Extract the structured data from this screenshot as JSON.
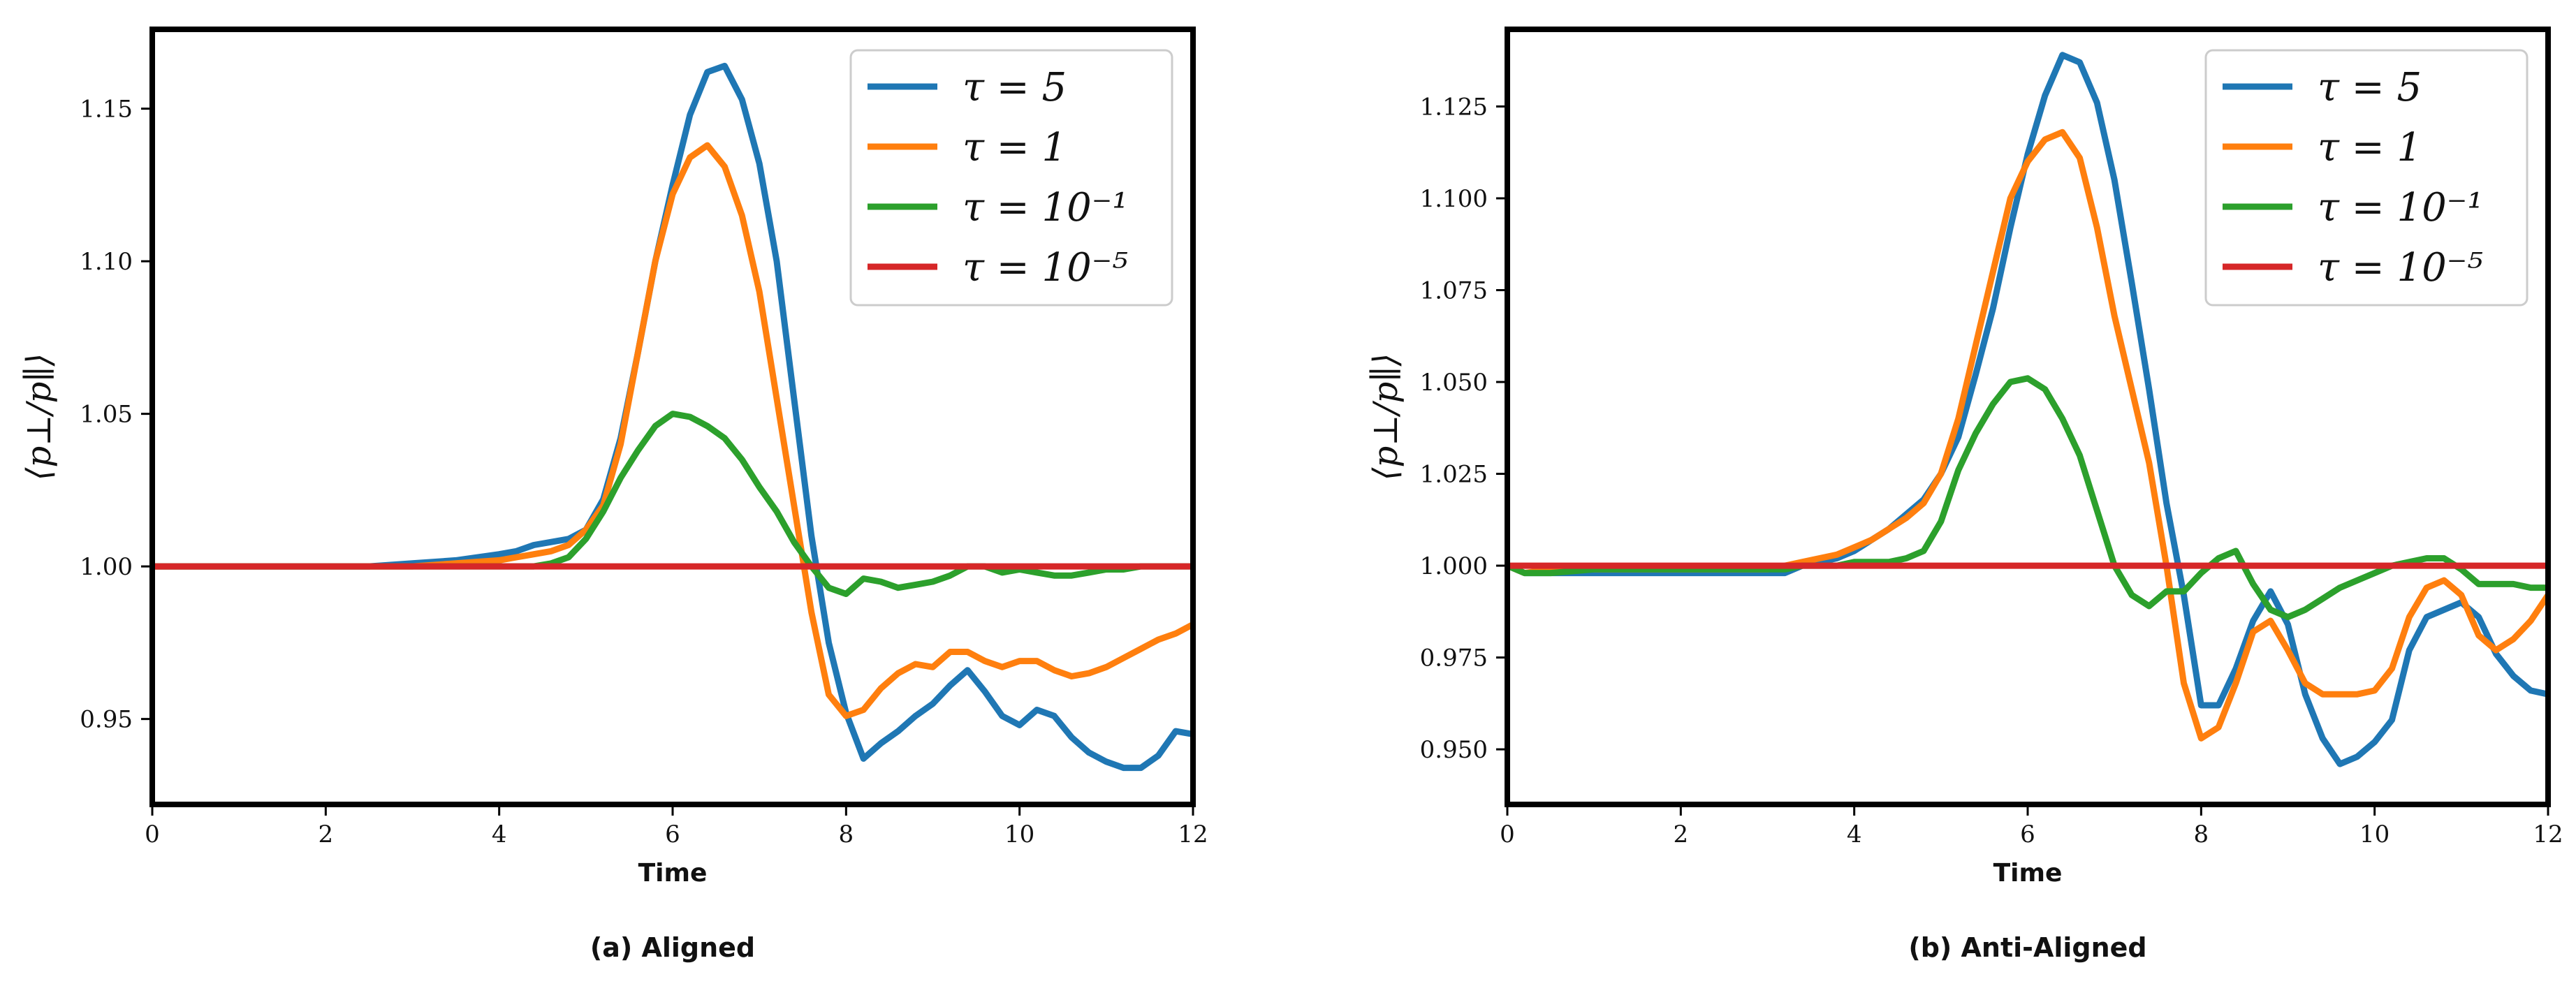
{
  "chart_data": [
    {
      "type": "line",
      "caption": "(a) Aligned",
      "xlabel": "Time",
      "ylabel": "⟨p⊥/p∥⟩",
      "xlim": [
        0,
        12
      ],
      "ylim": [
        0.922,
        1.176
      ],
      "xticks": [
        0,
        2,
        4,
        6,
        8,
        10,
        12
      ],
      "xtick_labels": [
        "0",
        "2",
        "4",
        "6",
        "8",
        "10",
        "12"
      ],
      "yticks": [
        0.95,
        1.0,
        1.05,
        1.1,
        1.15
      ],
      "ytick_labels": [
        "0.95",
        "1.00",
        "1.05",
        "1.10",
        "1.15"
      ],
      "legend_position": "top-right",
      "grid": false,
      "series": [
        {
          "name": "τ = 5",
          "color": "#1f77b4",
          "x": [
            0,
            0.5,
            1,
            1.5,
            2,
            2.5,
            3,
            3.5,
            4,
            4.2,
            4.4,
            4.6,
            4.8,
            5,
            5.2,
            5.4,
            5.6,
            5.8,
            6,
            6.2,
            6.4,
            6.6,
            6.8,
            7,
            7.2,
            7.4,
            7.6,
            7.8,
            8,
            8.2,
            8.4,
            8.6,
            8.8,
            9,
            9.2,
            9.4,
            9.6,
            9.8,
            10,
            10.2,
            10.4,
            10.6,
            10.8,
            11,
            11.2,
            11.4,
            11.6,
            11.8,
            12
          ],
          "y": [
            1.0,
            1.0,
            1.0,
            1.0,
            1.0,
            1.0,
            1.001,
            1.002,
            1.004,
            1.005,
            1.007,
            1.008,
            1.009,
            1.012,
            1.022,
            1.042,
            1.07,
            1.1,
            1.125,
            1.148,
            1.162,
            1.164,
            1.153,
            1.132,
            1.1,
            1.055,
            1.01,
            0.975,
            0.952,
            0.937,
            0.942,
            0.946,
            0.951,
            0.955,
            0.961,
            0.966,
            0.959,
            0.951,
            0.948,
            0.953,
            0.951,
            0.944,
            0.939,
            0.936,
            0.934,
            0.934,
            0.938,
            0.946,
            0.945
          ]
        },
        {
          "name": "τ = 1",
          "color": "#ff7f0e",
          "x": [
            0,
            0.5,
            1,
            1.5,
            2,
            2.5,
            3,
            3.5,
            4,
            4.2,
            4.4,
            4.6,
            4.8,
            5,
            5.2,
            5.4,
            5.6,
            5.8,
            6,
            6.2,
            6.4,
            6.6,
            6.8,
            7,
            7.2,
            7.4,
            7.6,
            7.8,
            8,
            8.2,
            8.4,
            8.6,
            8.8,
            9,
            9.2,
            9.4,
            9.6,
            9.8,
            10,
            10.2,
            10.4,
            10.6,
            10.8,
            11,
            11.2,
            11.4,
            11.6,
            11.8,
            12
          ],
          "y": [
            1.0,
            1.0,
            1.0,
            1.0,
            1.0,
            1.0,
            1.0,
            1.001,
            1.002,
            1.003,
            1.004,
            1.005,
            1.007,
            1.012,
            1.02,
            1.04,
            1.07,
            1.1,
            1.122,
            1.134,
            1.138,
            1.131,
            1.115,
            1.09,
            1.055,
            1.02,
            0.985,
            0.958,
            0.951,
            0.953,
            0.96,
            0.965,
            0.968,
            0.967,
            0.972,
            0.972,
            0.969,
            0.967,
            0.969,
            0.969,
            0.966,
            0.964,
            0.965,
            0.967,
            0.97,
            0.973,
            0.976,
            0.978,
            0.981
          ]
        },
        {
          "name": "τ = 10⁻¹",
          "color": "#2ca02c",
          "x": [
            0,
            0.5,
            1,
            1.5,
            2,
            2.5,
            3,
            3.5,
            4,
            4.2,
            4.4,
            4.6,
            4.8,
            5,
            5.2,
            5.4,
            5.6,
            5.8,
            6,
            6.2,
            6.4,
            6.6,
            6.8,
            7,
            7.2,
            7.4,
            7.6,
            7.8,
            8,
            8.2,
            8.4,
            8.6,
            8.8,
            9,
            9.2,
            9.4,
            9.6,
            9.8,
            10,
            10.2,
            10.4,
            10.6,
            10.8,
            11,
            11.2,
            11.4,
            11.6,
            11.8,
            12
          ],
          "y": [
            1.0,
            1.0,
            1.0,
            1.0,
            1.0,
            1.0,
            1.0,
            1.0,
            1.0,
            1.0,
            1.0,
            1.001,
            1.003,
            1.009,
            1.018,
            1.029,
            1.038,
            1.046,
            1.05,
            1.049,
            1.046,
            1.042,
            1.035,
            1.026,
            1.018,
            1.008,
            1.0,
            0.993,
            0.991,
            0.996,
            0.995,
            0.993,
            0.994,
            0.995,
            0.997,
            1.0,
            1.0,
            0.998,
            0.999,
            0.998,
            0.997,
            0.997,
            0.998,
            0.999,
            0.999,
            1.0,
            1.0,
            1.0,
            1.0
          ]
        },
        {
          "name": "τ = 10⁻⁵",
          "color": "#d62728",
          "x": [
            0,
            12
          ],
          "y": [
            1.0,
            1.0
          ]
        }
      ]
    },
    {
      "type": "line",
      "caption": "(b) Anti-Aligned",
      "xlabel": "Time",
      "ylabel": "⟨p⊥/p∥⟩",
      "xlim": [
        0,
        12
      ],
      "ylim": [
        0.935,
        1.146
      ],
      "xticks": [
        0,
        2,
        4,
        6,
        8,
        10,
        12
      ],
      "xtick_labels": [
        "0",
        "2",
        "4",
        "6",
        "8",
        "10",
        "12"
      ],
      "yticks": [
        0.95,
        0.975,
        1.0,
        1.025,
        1.05,
        1.075,
        1.1,
        1.125
      ],
      "ytick_labels": [
        "0.950",
        "0.975",
        "1.000",
        "1.025",
        "1.050",
        "1.075",
        "1.100",
        "1.125"
      ],
      "legend_position": "top-right",
      "grid": false,
      "series": [
        {
          "name": "τ = 5",
          "color": "#1f77b4",
          "x": [
            0,
            0.2,
            0.5,
            1,
            1.5,
            2,
            2.5,
            3,
            3.2,
            3.4,
            3.6,
            3.8,
            4,
            4.2,
            4.4,
            4.6,
            4.8,
            5,
            5.2,
            5.4,
            5.6,
            5.8,
            6,
            6.2,
            6.4,
            6.6,
            6.8,
            7,
            7.2,
            7.4,
            7.6,
            7.8,
            8,
            8.2,
            8.4,
            8.6,
            8.8,
            9,
            9.2,
            9.4,
            9.6,
            9.8,
            10,
            10.2,
            10.4,
            10.6,
            10.8,
            11,
            11.2,
            11.4,
            11.6,
            11.8,
            12
          ],
          "y": [
            1.0,
            0.998,
            0.998,
            0.998,
            0.998,
            0.998,
            0.998,
            0.998,
            0.998,
            1.0,
            1.001,
            1.002,
            1.004,
            1.007,
            1.01,
            1.014,
            1.018,
            1.025,
            1.035,
            1.052,
            1.07,
            1.092,
            1.112,
            1.128,
            1.139,
            1.137,
            1.126,
            1.105,
            1.077,
            1.048,
            1.017,
            0.992,
            0.962,
            0.962,
            0.972,
            0.985,
            0.993,
            0.984,
            0.965,
            0.953,
            0.946,
            0.948,
            0.952,
            0.958,
            0.977,
            0.986,
            0.988,
            0.99,
            0.986,
            0.976,
            0.97,
            0.966,
            0.965
          ]
        },
        {
          "name": "τ = 1",
          "color": "#ff7f0e",
          "x": [
            0,
            0.2,
            0.5,
            1,
            1.5,
            2,
            2.5,
            3,
            3.2,
            3.4,
            3.6,
            3.8,
            4,
            4.2,
            4.4,
            4.6,
            4.8,
            5,
            5.2,
            5.4,
            5.6,
            5.8,
            6,
            6.2,
            6.4,
            6.6,
            6.8,
            7,
            7.2,
            7.4,
            7.6,
            7.8,
            8,
            8.2,
            8.4,
            8.6,
            8.8,
            9,
            9.2,
            9.4,
            9.6,
            9.8,
            10,
            10.2,
            10.4,
            10.6,
            10.8,
            11,
            11.2,
            11.4,
            11.6,
            11.8,
            12
          ],
          "y": [
            1.0,
            0.998,
            0.999,
            0.999,
            0.999,
            0.999,
            0.999,
            0.999,
            1.0,
            1.001,
            1.002,
            1.003,
            1.005,
            1.007,
            1.01,
            1.013,
            1.017,
            1.025,
            1.04,
            1.06,
            1.08,
            1.1,
            1.11,
            1.116,
            1.118,
            1.111,
            1.092,
            1.068,
            1.048,
            1.028,
            1.0,
            0.968,
            0.953,
            0.956,
            0.968,
            0.982,
            0.985,
            0.977,
            0.968,
            0.965,
            0.965,
            0.965,
            0.966,
            0.972,
            0.986,
            0.994,
            0.996,
            0.992,
            0.981,
            0.977,
            0.98,
            0.985,
            0.992
          ]
        },
        {
          "name": "τ = 10⁻¹",
          "color": "#2ca02c",
          "x": [
            0,
            0.2,
            0.5,
            1,
            1.5,
            2,
            2.5,
            3,
            3.2,
            3.4,
            3.6,
            3.8,
            4,
            4.2,
            4.4,
            4.6,
            4.8,
            5,
            5.2,
            5.4,
            5.6,
            5.8,
            6,
            6.2,
            6.4,
            6.6,
            6.8,
            7,
            7.2,
            7.4,
            7.6,
            7.8,
            8,
            8.2,
            8.4,
            8.6,
            8.8,
            9,
            9.2,
            9.4,
            9.6,
            9.8,
            10,
            10.2,
            10.4,
            10.6,
            10.8,
            11,
            11.2,
            11.4,
            11.6,
            11.8,
            12
          ],
          "y": [
            1.0,
            0.998,
            0.998,
            0.999,
            0.999,
            0.999,
            0.999,
            0.999,
            0.999,
            1.0,
            1.0,
            1.0,
            1.001,
            1.001,
            1.001,
            1.002,
            1.004,
            1.012,
            1.026,
            1.036,
            1.044,
            1.05,
            1.051,
            1.048,
            1.04,
            1.03,
            1.015,
            1.0,
            0.992,
            0.989,
            0.993,
            0.993,
            0.998,
            1.002,
            1.004,
            0.995,
            0.988,
            0.986,
            0.988,
            0.991,
            0.994,
            0.996,
            0.998,
            1.0,
            1.001,
            1.002,
            1.002,
            0.999,
            0.995,
            0.995,
            0.995,
            0.994,
            0.994
          ]
        },
        {
          "name": "τ = 10⁻⁵",
          "color": "#d62728",
          "x": [
            0,
            12
          ],
          "y": [
            1.0,
            1.0
          ]
        }
      ]
    }
  ]
}
